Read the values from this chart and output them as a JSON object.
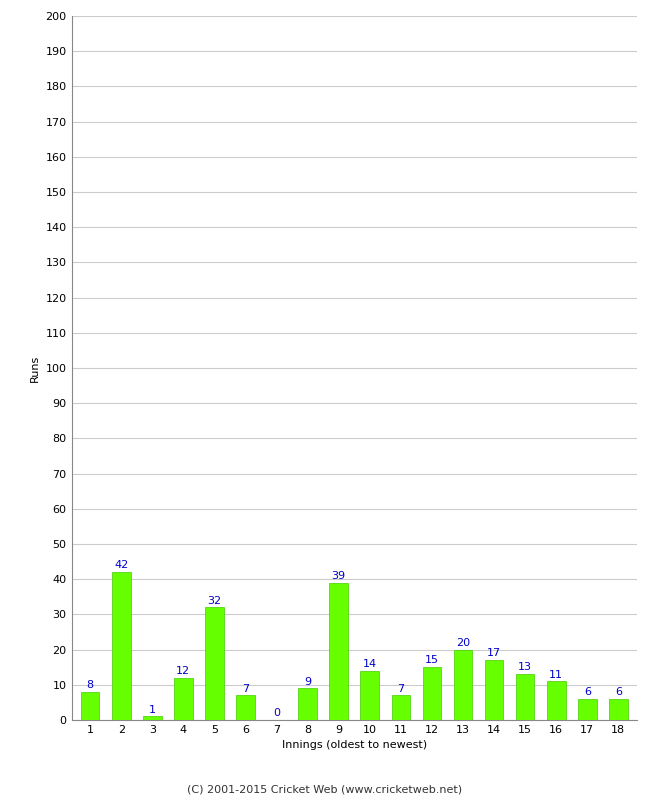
{
  "title": "",
  "xlabel": "Innings (oldest to newest)",
  "ylabel": "Runs",
  "categories": [
    1,
    2,
    3,
    4,
    5,
    6,
    7,
    8,
    9,
    10,
    11,
    12,
    13,
    14,
    15,
    16,
    17,
    18
  ],
  "values": [
    8,
    42,
    1,
    12,
    32,
    7,
    0,
    9,
    39,
    14,
    7,
    15,
    20,
    17,
    13,
    11,
    6,
    6
  ],
  "bar_color": "#66ff00",
  "bar_edge_color": "#44cc00",
  "label_color": "#0000cc",
  "ylim": [
    0,
    200
  ],
  "yticks": [
    0,
    10,
    20,
    30,
    40,
    50,
    60,
    70,
    80,
    90,
    100,
    110,
    120,
    130,
    140,
    150,
    160,
    170,
    180,
    190,
    200
  ],
  "background_color": "#ffffff",
  "grid_color": "#cccccc",
  "footer": "(C) 2001-2015 Cricket Web (www.cricketweb.net)",
  "axis_label_fontsize": 8,
  "tick_fontsize": 8,
  "bar_label_fontsize": 8,
  "footer_fontsize": 8,
  "bar_width": 0.6
}
